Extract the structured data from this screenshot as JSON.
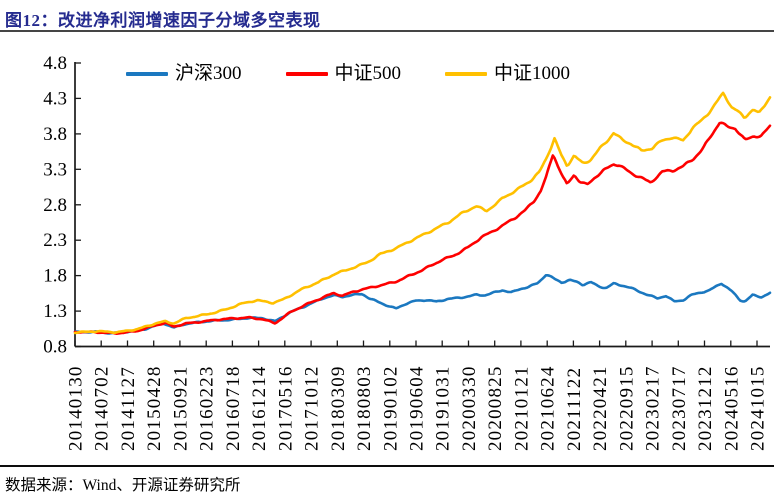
{
  "header": {
    "title": "图12：改进净利润增速因子分域多空表现",
    "title_color": "#252b8f"
  },
  "footer": {
    "source_note": "数据来源：Wind、开源证券研究所"
  },
  "chart_data": {
    "type": "line",
    "title": "图12：改进净利润增速因子分域多空表现",
    "legend_position": "top",
    "grid": false,
    "background": "#ffffff",
    "axis_color": "#1a1a1a",
    "ylim": [
      0.8,
      4.8
    ],
    "y_ticks": [
      4.8,
      4.3,
      3.8,
      3.3,
      2.8,
      2.3,
      1.8,
      1.3,
      0.8
    ],
    "x_tick_labels": [
      "20140130",
      "20140702",
      "20141127",
      "20150428",
      "20150921",
      "20160223",
      "20160718",
      "20161214",
      "20170516",
      "20171012",
      "20180309",
      "20180803",
      "20190102",
      "20190604",
      "20191031",
      "20200330",
      "20200825",
      "20210121",
      "20210624",
      "20211122",
      "20220421",
      "20220915",
      "20230217",
      "20230717",
      "20231212",
      "20240516",
      "20241015"
    ],
    "series": [
      {
        "name": "沪深300",
        "color": "#1b78c0",
        "points": [
          [
            0,
            1.0
          ],
          [
            0.03,
            1.01
          ],
          [
            0.055,
            0.99
          ],
          [
            0.08,
            1.01
          ],
          [
            0.1,
            1.04
          ],
          [
            0.118,
            1.1
          ],
          [
            0.128,
            1.13
          ],
          [
            0.142,
            1.07
          ],
          [
            0.158,
            1.12
          ],
          [
            0.178,
            1.14
          ],
          [
            0.2,
            1.16
          ],
          [
            0.225,
            1.18
          ],
          [
            0.25,
            1.21
          ],
          [
            0.27,
            1.2
          ],
          [
            0.288,
            1.15
          ],
          [
            0.31,
            1.28
          ],
          [
            0.335,
            1.39
          ],
          [
            0.358,
            1.49
          ],
          [
            0.372,
            1.52
          ],
          [
            0.385,
            1.5
          ],
          [
            0.4,
            1.52
          ],
          [
            0.413,
            1.54
          ],
          [
            0.425,
            1.47
          ],
          [
            0.44,
            1.42
          ],
          [
            0.455,
            1.36
          ],
          [
            0.462,
            1.34
          ],
          [
            0.475,
            1.4
          ],
          [
            0.49,
            1.44
          ],
          [
            0.505,
            1.45
          ],
          [
            0.52,
            1.43
          ],
          [
            0.535,
            1.47
          ],
          [
            0.55,
            1.49
          ],
          [
            0.565,
            1.51
          ],
          [
            0.577,
            1.53
          ],
          [
            0.59,
            1.52
          ],
          [
            0.605,
            1.56
          ],
          [
            0.615,
            1.59
          ],
          [
            0.628,
            1.56
          ],
          [
            0.642,
            1.62
          ],
          [
            0.654,
            1.65
          ],
          [
            0.666,
            1.7
          ],
          [
            0.678,
            1.82
          ],
          [
            0.69,
            1.75
          ],
          [
            0.7,
            1.7
          ],
          [
            0.712,
            1.73
          ],
          [
            0.724,
            1.7
          ],
          [
            0.731,
            1.67
          ],
          [
            0.742,
            1.71
          ],
          [
            0.752,
            1.66
          ],
          [
            0.764,
            1.63
          ],
          [
            0.775,
            1.69
          ],
          [
            0.788,
            1.66
          ],
          [
            0.8,
            1.62
          ],
          [
            0.812,
            1.57
          ],
          [
            0.825,
            1.52
          ],
          [
            0.838,
            1.48
          ],
          [
            0.85,
            1.52
          ],
          [
            0.862,
            1.44
          ],
          [
            0.875,
            1.46
          ],
          [
            0.888,
            1.53
          ],
          [
            0.9,
            1.56
          ],
          [
            0.912,
            1.58
          ],
          [
            0.93,
            1.69
          ],
          [
            0.945,
            1.58
          ],
          [
            0.957,
            1.46
          ],
          [
            0.964,
            1.44
          ],
          [
            0.975,
            1.53
          ],
          [
            0.988,
            1.5
          ],
          [
            1,
            1.55
          ]
        ]
      },
      {
        "name": "中证500",
        "color": "#fe0000",
        "points": [
          [
            0,
            1.0
          ],
          [
            0.03,
            1.0
          ],
          [
            0.06,
            0.99
          ],
          [
            0.09,
            1.02
          ],
          [
            0.118,
            1.1
          ],
          [
            0.13,
            1.13
          ],
          [
            0.142,
            1.08
          ],
          [
            0.16,
            1.13
          ],
          [
            0.18,
            1.15
          ],
          [
            0.2,
            1.17
          ],
          [
            0.225,
            1.19
          ],
          [
            0.25,
            1.21
          ],
          [
            0.27,
            1.19
          ],
          [
            0.288,
            1.13
          ],
          [
            0.31,
            1.28
          ],
          [
            0.335,
            1.4
          ],
          [
            0.358,
            1.5
          ],
          [
            0.372,
            1.56
          ],
          [
            0.385,
            1.52
          ],
          [
            0.4,
            1.57
          ],
          [
            0.423,
            1.62
          ],
          [
            0.44,
            1.66
          ],
          [
            0.462,
            1.72
          ],
          [
            0.48,
            1.8
          ],
          [
            0.5,
            1.88
          ],
          [
            0.515,
            1.95
          ],
          [
            0.527,
            2.01
          ],
          [
            0.545,
            2.08
          ],
          [
            0.565,
            2.2
          ],
          [
            0.585,
            2.35
          ],
          [
            0.6,
            2.42
          ],
          [
            0.615,
            2.5
          ],
          [
            0.632,
            2.6
          ],
          [
            0.648,
            2.72
          ],
          [
            0.66,
            2.85
          ],
          [
            0.67,
            3.0
          ],
          [
            0.678,
            3.2
          ],
          [
            0.688,
            3.53
          ],
          [
            0.695,
            3.35
          ],
          [
            0.702,
            3.2
          ],
          [
            0.708,
            3.08
          ],
          [
            0.718,
            3.22
          ],
          [
            0.726,
            3.12
          ],
          [
            0.737,
            3.07
          ],
          [
            0.748,
            3.18
          ],
          [
            0.76,
            3.28
          ],
          [
            0.775,
            3.38
          ],
          [
            0.783,
            3.37
          ],
          [
            0.8,
            3.25
          ],
          [
            0.815,
            3.18
          ],
          [
            0.828,
            3.1
          ],
          [
            0.845,
            3.26
          ],
          [
            0.86,
            3.28
          ],
          [
            0.875,
            3.35
          ],
          [
            0.89,
            3.46
          ],
          [
            0.903,
            3.59
          ],
          [
            0.917,
            3.8
          ],
          [
            0.928,
            3.96
          ],
          [
            0.938,
            3.89
          ],
          [
            0.95,
            3.87
          ],
          [
            0.964,
            3.71
          ],
          [
            0.977,
            3.78
          ],
          [
            0.987,
            3.77
          ],
          [
            1,
            3.92
          ]
        ]
      },
      {
        "name": "中证1000",
        "color": "#ffc000",
        "points": [
          [
            0,
            1.0
          ],
          [
            0.03,
            1.01
          ],
          [
            0.06,
            1.0
          ],
          [
            0.09,
            1.05
          ],
          [
            0.118,
            1.13
          ],
          [
            0.13,
            1.15
          ],
          [
            0.142,
            1.12
          ],
          [
            0.16,
            1.2
          ],
          [
            0.18,
            1.24
          ],
          [
            0.2,
            1.28
          ],
          [
            0.22,
            1.33
          ],
          [
            0.24,
            1.4
          ],
          [
            0.262,
            1.45
          ],
          [
            0.285,
            1.42
          ],
          [
            0.3,
            1.47
          ],
          [
            0.325,
            1.6
          ],
          [
            0.35,
            1.7
          ],
          [
            0.375,
            1.83
          ],
          [
            0.395,
            1.9
          ],
          [
            0.41,
            1.95
          ],
          [
            0.423,
            2.0
          ],
          [
            0.44,
            2.1
          ],
          [
            0.462,
            2.18
          ],
          [
            0.48,
            2.28
          ],
          [
            0.5,
            2.38
          ],
          [
            0.52,
            2.47
          ],
          [
            0.538,
            2.55
          ],
          [
            0.558,
            2.68
          ],
          [
            0.577,
            2.78
          ],
          [
            0.592,
            2.72
          ],
          [
            0.61,
            2.85
          ],
          [
            0.615,
            2.9
          ],
          [
            0.635,
            3.0
          ],
          [
            0.654,
            3.12
          ],
          [
            0.668,
            3.25
          ],
          [
            0.678,
            3.45
          ],
          [
            0.69,
            3.74
          ],
          [
            0.7,
            3.5
          ],
          [
            0.708,
            3.36
          ],
          [
            0.718,
            3.5
          ],
          [
            0.731,
            3.38
          ],
          [
            0.742,
            3.43
          ],
          [
            0.755,
            3.58
          ],
          [
            0.768,
            3.72
          ],
          [
            0.775,
            3.81
          ],
          [
            0.787,
            3.72
          ],
          [
            0.8,
            3.67
          ],
          [
            0.815,
            3.57
          ],
          [
            0.83,
            3.6
          ],
          [
            0.845,
            3.7
          ],
          [
            0.858,
            3.74
          ],
          [
            0.875,
            3.7
          ],
          [
            0.888,
            3.88
          ],
          [
            0.902,
            4.0
          ],
          [
            0.916,
            4.16
          ],
          [
            0.933,
            4.38
          ],
          [
            0.945,
            4.17
          ],
          [
            0.952,
            4.12
          ],
          [
            0.963,
            4.02
          ],
          [
            0.976,
            4.14
          ],
          [
            0.984,
            4.08
          ],
          [
            1,
            4.33
          ]
        ]
      }
    ]
  }
}
